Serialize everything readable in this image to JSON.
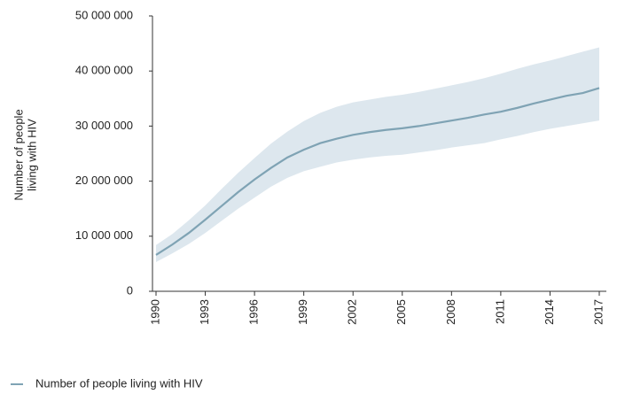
{
  "chart_data": {
    "type": "line",
    "ylabel": [
      "Number of people",
      "living with HIV"
    ],
    "x": [
      1990,
      1991,
      1992,
      1993,
      1994,
      1995,
      1996,
      1997,
      1998,
      1999,
      2000,
      2001,
      2002,
      2003,
      2004,
      2005,
      2006,
      2007,
      2008,
      2009,
      2010,
      2011,
      2012,
      2013,
      2014,
      2015,
      2016,
      2017
    ],
    "series": [
      {
        "name": "Number of people living with HIV",
        "color": "#7fa3b4",
        "band_color": "#dde7ee",
        "values": [
          6600000,
          8500000,
          10600000,
          13000000,
          15500000,
          18000000,
          20300000,
          22400000,
          24300000,
          25700000,
          26900000,
          27700000,
          28400000,
          28900000,
          29300000,
          29600000,
          30000000,
          30500000,
          31000000,
          31500000,
          32100000,
          32600000,
          33300000,
          34100000,
          34800000,
          35500000,
          36000000,
          36900000
        ],
        "lower": [
          5300000,
          6900000,
          8600000,
          10600000,
          12800000,
          15000000,
          17000000,
          19000000,
          20600000,
          21800000,
          22600000,
          23400000,
          23900000,
          24300000,
          24600000,
          24800000,
          25200000,
          25600000,
          26100000,
          26500000,
          26900000,
          27600000,
          28200000,
          28900000,
          29500000,
          30000000,
          30500000,
          31000000
        ],
        "upper": [
          8400000,
          10400000,
          12900000,
          15600000,
          18600000,
          21500000,
          24200000,
          26800000,
          29000000,
          30900000,
          32400000,
          33500000,
          34300000,
          34800000,
          35300000,
          35700000,
          36200000,
          36800000,
          37400000,
          38000000,
          38700000,
          39500000,
          40400000,
          41200000,
          41900000,
          42700000,
          43500000,
          44300000
        ]
      }
    ],
    "xlim": [
      1990,
      2017
    ],
    "xticks": [
      1990,
      1993,
      1996,
      1999,
      2002,
      2005,
      2008,
      2011,
      2014,
      2017
    ],
    "ylim": [
      0,
      50000000
    ],
    "yticks": [
      0,
      {
        "value": 10000000,
        "label": "10 000 000"
      },
      {
        "value": 20000000,
        "label": "20 000 000"
      },
      {
        "value": 30000000,
        "label": "30 000 000"
      },
      {
        "value": 40000000,
        "label": "40 000 000"
      },
      {
        "value": 50000000,
        "label": "50 000 000"
      }
    ],
    "grid": false,
    "legend": "bottom-left"
  }
}
